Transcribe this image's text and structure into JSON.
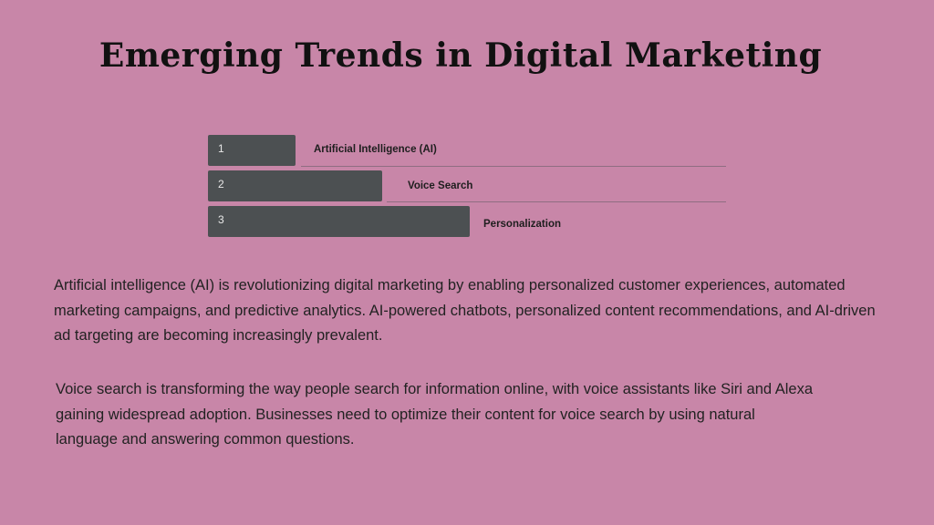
{
  "title": "Emerging Trends in Digital Marketing",
  "steps": [
    {
      "number": "1",
      "label": "Artificial Intelligence (AI)"
    },
    {
      "number": "2",
      "label": "Voice Search"
    },
    {
      "number": "3",
      "label": "Personalization"
    }
  ],
  "paragraphs": [
    "Artificial intelligence (AI) is revolutionizing digital marketing by enabling personalized customer experiences, automated marketing campaigns, and predictive analytics. AI-powered chatbots, personalized content recommendations, and AI-driven ad targeting are becoming increasingly prevalent.",
    "Voice search is transforming the way people search for information online, with voice assistants like Siri and Alexa gaining widespread adoption. Businesses need to optimize their content for voice search by using natural language and answering common questions."
  ],
  "colors": {
    "background": "#c886a8",
    "bar": "#4c5052"
  }
}
